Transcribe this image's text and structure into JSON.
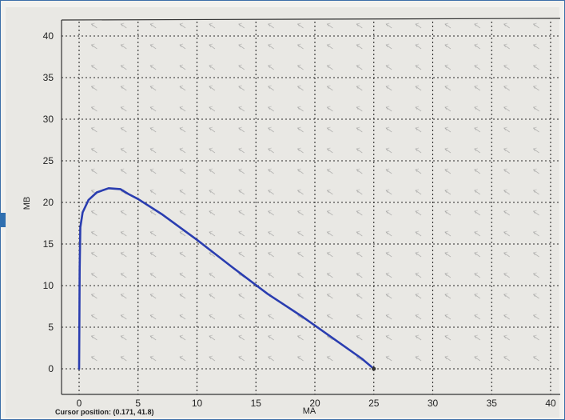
{
  "window": {
    "border_color": "#3b6ea8"
  },
  "status_bar": {
    "label": "Cursor position:",
    "value": "(0.171, 41.8)"
  },
  "chart_data": {
    "type": "line",
    "title": "",
    "xlabel": "MA",
    "ylabel": "MB",
    "xlim": [
      0,
      40
    ],
    "ylim": [
      0,
      40
    ],
    "xticks": [
      0,
      5,
      10,
      15,
      20,
      25,
      30,
      35,
      40
    ],
    "yticks": [
      0,
      5,
      10,
      15,
      20,
      25,
      30,
      35,
      40
    ],
    "grid": true,
    "grid_style": "dotted",
    "background_feature": "direction-field arrows",
    "series": [
      {
        "color": "#2a3db0",
        "x": [
          0,
          0.02,
          0.05,
          0.1,
          0.3,
          0.8,
          1.5,
          2.5,
          3.5,
          4.2,
          5,
          7,
          10,
          13,
          16,
          19,
          22,
          24,
          25
        ],
        "y": [
          0,
          5,
          12,
          17,
          18.8,
          20.3,
          21.2,
          21.7,
          21.6,
          21.0,
          20.4,
          18.6,
          15.5,
          12.2,
          9.0,
          6.2,
          3.2,
          1.2,
          0
        ]
      }
    ]
  }
}
